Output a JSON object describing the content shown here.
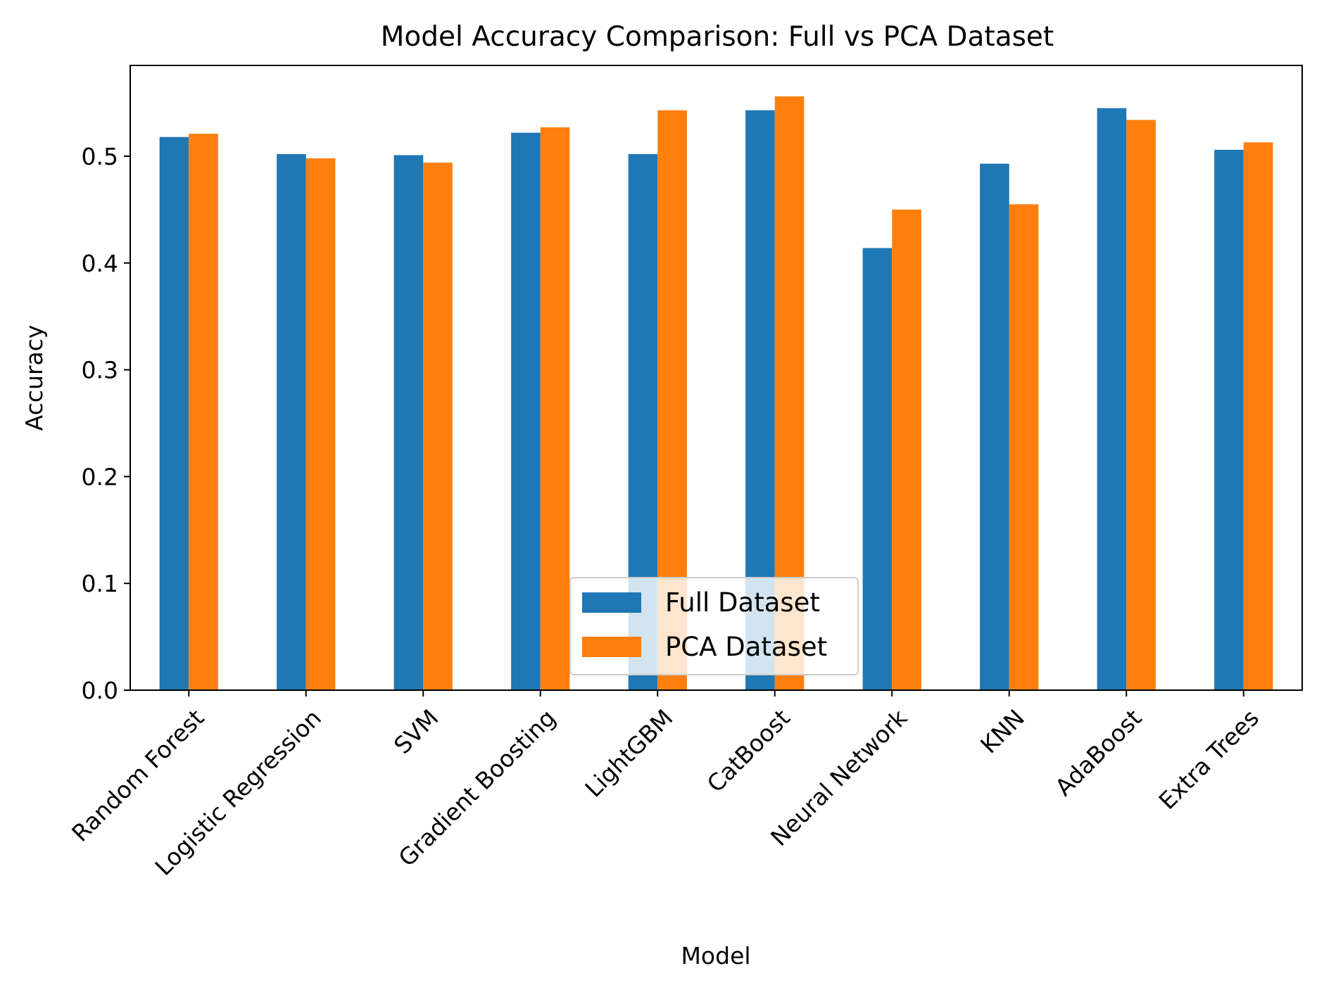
{
  "chart_data": {
    "type": "bar",
    "title": "Model Accuracy Comparison: Full vs PCA Dataset",
    "xlabel": "Model",
    "ylabel": "Accuracy",
    "ylim": [
      0,
      0.585
    ],
    "yticks": [
      0.0,
      0.1,
      0.2,
      0.3,
      0.4,
      0.5
    ],
    "ytick_labels": [
      "0.0",
      "0.1",
      "0.2",
      "0.3",
      "0.4",
      "0.5"
    ],
    "categories": [
      "Random Forest",
      "Logistic Regression",
      "SVM",
      "Gradient Boosting",
      "LightGBM",
      "CatBoost",
      "Neural Network",
      "KNN",
      "AdaBoost",
      "Extra Trees"
    ],
    "series": [
      {
        "name": "Full Dataset",
        "color": "#1f77b4",
        "values": [
          0.518,
          0.502,
          0.501,
          0.522,
          0.502,
          0.543,
          0.414,
          0.493,
          0.545,
          0.506
        ]
      },
      {
        "name": "PCA Dataset",
        "color": "#ff7f0e",
        "values": [
          0.521,
          0.498,
          0.494,
          0.527,
          0.543,
          0.556,
          0.45,
          0.455,
          0.534,
          0.513
        ]
      }
    ],
    "legend_position": "lower center",
    "grid": false
  }
}
